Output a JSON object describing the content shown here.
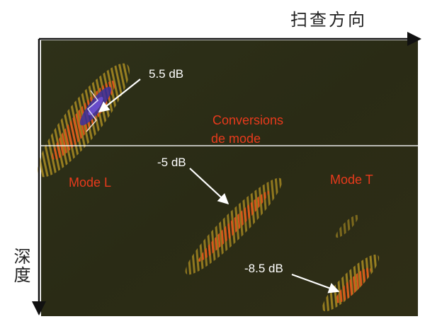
{
  "labels": {
    "scan_direction": "扫查方向",
    "depth": "深度",
    "annotation_top": "5.5 dB",
    "annotation_mid": "-5 dB",
    "annotation_low": "-8.5 dB",
    "conversions_line1": "Conversions",
    "conversions_line2": "de mode",
    "mode_l": "Mode L",
    "mode_t": "Mode T"
  },
  "colors": {
    "background": "#2b2d16",
    "orange_red_label": "#e83a1c",
    "white_label": "#ffffff",
    "echo_outer": "#c9a425",
    "echo_core": "#d9591c",
    "echo_peak": "#3a2f9e",
    "axis": "#111111"
  }
}
